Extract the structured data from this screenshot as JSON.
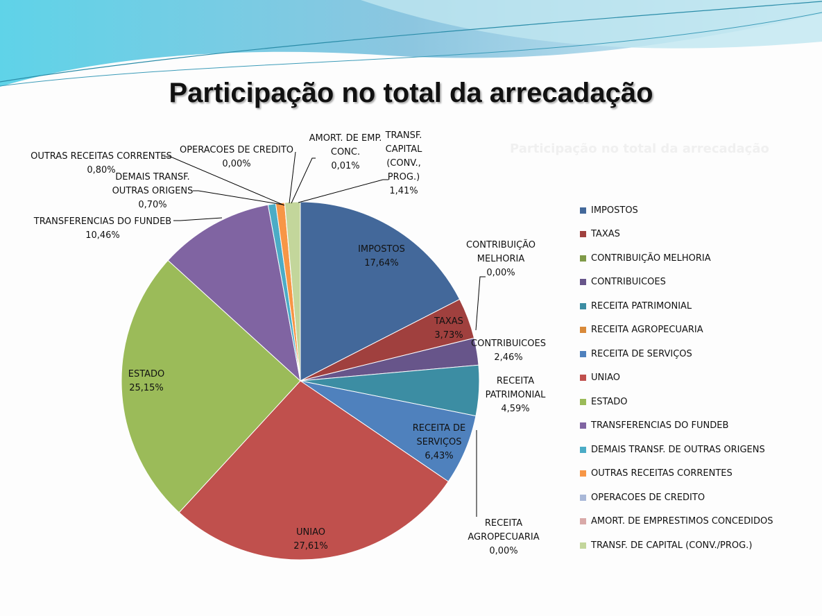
{
  "slide": {
    "title": "Participação no total da arrecadação"
  },
  "chart_data": {
    "type": "pie",
    "title": "Participação no total da arrecadação",
    "legend_position": "right",
    "slices": [
      {
        "name": "IMPOSTOS",
        "label": "IMPOSTOS",
        "value": 17.64,
        "pct": "17,64%",
        "color": "#43689A"
      },
      {
        "name": "TAXAS",
        "label": "TAXAS",
        "value": 3.73,
        "pct": "3,73%",
        "color": "#A0403E"
      },
      {
        "name": "CONTRIBUIÇÃO MELHORIA",
        "label": "CONTRIBUIÇÃO MELHORIA",
        "value": 0.0,
        "pct": "0,00%",
        "color": "#7F9A48"
      },
      {
        "name": "CONTRIBUICOES",
        "label": "CONTRIBUICOES",
        "value": 2.46,
        "pct": "2,46%",
        "color": "#67558A"
      },
      {
        "name": "RECEITA PATRIMONIAL",
        "label": "RECEITA PATRIMONIAL",
        "value": 4.59,
        "pct": "4,59%",
        "color": "#3C8DA3"
      },
      {
        "name": "RECEITA AGROPECUARIA",
        "label": "RECEITA AGROPECUARIA",
        "value": 0.0,
        "pct": "0,00%",
        "color": "#D98A3A"
      },
      {
        "name": "RECEITA DE SERVIÇOS",
        "label": "RECEITA DE SERVIÇOS",
        "value": 6.43,
        "pct": "6,43%",
        "color": "#4F81BD"
      },
      {
        "name": "UNIAO",
        "label": "UNIAO",
        "value": 27.61,
        "pct": "27,61%",
        "color": "#C0504D"
      },
      {
        "name": "ESTADO",
        "label": "ESTADO",
        "value": 25.15,
        "pct": "25,15%",
        "color": "#9BBB59"
      },
      {
        "name": "TRANSFERENCIAS DO FUNDEB",
        "label": "TRANSFERENCIAS DO FUNDEB",
        "value": 10.46,
        "pct": "10,46%",
        "color": "#8064A2"
      },
      {
        "name": "DEMAIS TRANSF. DE OUTRAS ORIGENS",
        "label": "DEMAIS TRANSF. OUTRAS ORIGENS",
        "value": 0.7,
        "pct": "0,70%",
        "color": "#4BACC6"
      },
      {
        "name": "OUTRAS RECEITAS CORRENTES",
        "label": "OUTRAS RECEITAS CORRENTES",
        "value": 0.8,
        "pct": "0,80%",
        "color": "#F79646"
      },
      {
        "name": "OPERACOES DE CREDITO",
        "label": "OPERACOES DE CREDITO",
        "value": 0.0,
        "pct": "0,00%",
        "color": "#A9B8D8"
      },
      {
        "name": "AMORT. DE EMPRESTIMOS CONCEDIDOS",
        "label": "AMORT. DE EMP. CONC.",
        "value": 0.01,
        "pct": "0,01%",
        "color": "#D9A9A8"
      },
      {
        "name": "TRANSF. DE CAPITAL (CONV./PROG.)",
        "label": "TRANSF. CAPITAL (CONV., PROG.)",
        "value": 1.41,
        "pct": "1,41%",
        "color": "#C3D69B"
      }
    ]
  }
}
